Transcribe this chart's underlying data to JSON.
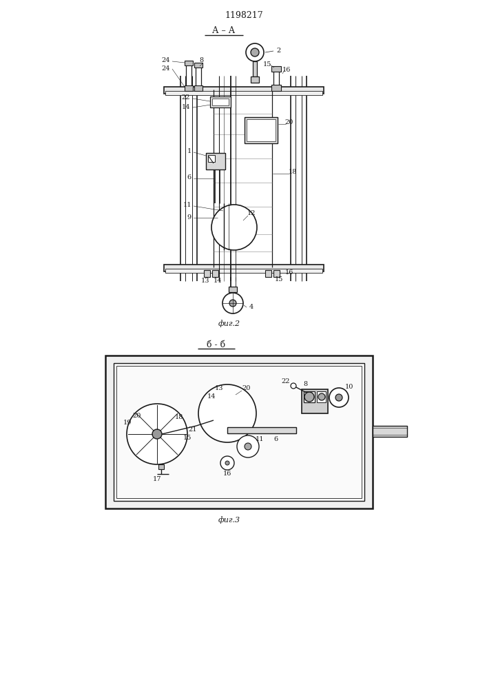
{
  "title": "1198217",
  "fig2_label": "А – А",
  "fig2_caption": "фиг.2",
  "fig3_label": "б - б",
  "fig3_caption": "фиг.3",
  "bg_color": "#ffffff",
  "line_color": "#1a1a1a",
  "fig_width": 7.07,
  "fig_height": 10.0
}
